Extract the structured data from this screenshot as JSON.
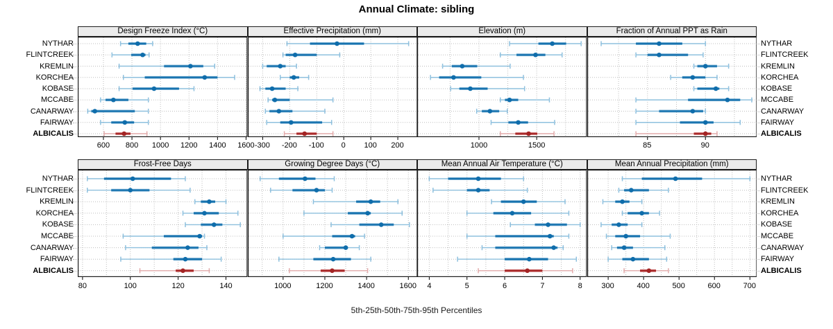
{
  "title": "Annual Climate: sibling",
  "caption": "5th-25th-50th-75th-95th Percentiles",
  "chart_data": {
    "type": "interval-dotplot",
    "title": "Annual Climate: sibling",
    "caption": "5th-25th-50th-75th-95th Percentiles",
    "percentiles": [
      5,
      25,
      50,
      75,
      95
    ],
    "stations": [
      "NYTHAR",
      "FLINTCREEK",
      "KREMLIN",
      "KORCHEA",
      "KOBASE",
      "MCCABE",
      "CANARWAY",
      "FAIRWAY",
      "ALBICALIS"
    ],
    "highlight_station": "ALBICALIS",
    "colors": {
      "blue_dark": "#0f6dab",
      "blue_bar": "#5b9ec9",
      "blue_light": "#8ec0de",
      "red_dark": "#a32424",
      "red_bar": "#cc6666",
      "red_light": "#e2aaaa",
      "gridline": "#bdbdbd",
      "strip_bg": "#ebebeb",
      "border": "#1c1c1c"
    },
    "panels": [
      {
        "title": "Design Freeze Index (°C)",
        "xlim": [
          420,
          1610
        ],
        "gridlines": [
          600,
          800,
          1000,
          1200,
          1400,
          1600
        ],
        "tick_values": [
          600,
          800,
          1000,
          1200,
          1400,
          1600
        ],
        "tick_labels": [
          "600",
          "800",
          "1000",
          "1200",
          "1400",
          "1600"
        ],
        "values": [
          [
            720,
            775,
            840,
            900,
            945
          ],
          [
            660,
            795,
            875,
            895,
            920
          ],
          [
            710,
            1025,
            1210,
            1300,
            1380
          ],
          [
            740,
            890,
            1310,
            1400,
            1520
          ],
          [
            710,
            805,
            955,
            1130,
            1235
          ],
          [
            580,
            615,
            670,
            775,
            915
          ],
          [
            490,
            515,
            540,
            820,
            915
          ],
          [
            580,
            655,
            750,
            815,
            915
          ],
          [
            605,
            685,
            745,
            790,
            905
          ]
        ]
      },
      {
        "title": "Effective Precipitation (mm)",
        "xlim": [
          -355,
          273
        ],
        "gridlines": [
          -300,
          -200,
          -100,
          0,
          100,
          200
        ],
        "tick_values": [
          -300,
          -200,
          -100,
          0,
          100,
          200
        ],
        "tick_labels": [
          "-300",
          "-200",
          "-100",
          "0",
          "100",
          "200"
        ],
        "values": [
          [
            -210,
            -125,
            -25,
            75,
            240
          ],
          [
            -225,
            -215,
            -180,
            -100,
            -15
          ],
          [
            -300,
            -285,
            -235,
            -215,
            -175
          ],
          [
            -235,
            -200,
            -185,
            -165,
            -130
          ],
          [
            -310,
            -290,
            -265,
            -215,
            -170
          ],
          [
            -280,
            -265,
            -255,
            -200,
            -40
          ],
          [
            -290,
            -275,
            -240,
            -190,
            -70
          ],
          [
            -285,
            -235,
            -195,
            -80,
            -45
          ],
          [
            -220,
            -175,
            -145,
            -100,
            -40
          ]
        ]
      },
      {
        "title": "Elevation (m)",
        "xlim": [
          465,
          1935
        ],
        "gridlines": [
          750,
          1000,
          1250,
          1500,
          1750
        ],
        "tick_values": [
          1000,
          1500
        ],
        "tick_labels": [
          "1000",
          "1500"
        ],
        "values": [
          [
            1265,
            1515,
            1635,
            1755,
            1885
          ],
          [
            1185,
            1325,
            1490,
            1575,
            1720
          ],
          [
            685,
            765,
            855,
            985,
            1270
          ],
          [
            580,
            655,
            780,
            1020,
            1385
          ],
          [
            755,
            830,
            925,
            1075,
            1395
          ],
          [
            1185,
            1225,
            1265,
            1340,
            1610
          ],
          [
            980,
            1025,
            1095,
            1175,
            1245
          ],
          [
            1105,
            1255,
            1340,
            1425,
            1655
          ],
          [
            1185,
            1315,
            1430,
            1505,
            1650
          ]
        ]
      },
      {
        "title": "Fraction of Annual PPT as Rain",
        "xlim": [
          79.8,
          94.45
        ],
        "gridlines": [
          82.5,
          85,
          87.5,
          90,
          92.5
        ],
        "tick_values": [
          85,
          90
        ],
        "tick_labels": [
          "85",
          "90"
        ],
        "values": [
          [
            81,
            84,
            86,
            88,
            90
          ],
          [
            84,
            85,
            86,
            88.5,
            89.8
          ],
          [
            89,
            89.3,
            90,
            91,
            92
          ],
          [
            87,
            88,
            88.9,
            90,
            91
          ],
          [
            89,
            89.3,
            90.9,
            91.2,
            92
          ],
          [
            84,
            88.5,
            91.9,
            93,
            94
          ],
          [
            84,
            86,
            88.9,
            89.8,
            90
          ],
          [
            84,
            87.8,
            90,
            90.7,
            93
          ],
          [
            84,
            89,
            90,
            90.5,
            91
          ]
        ]
      },
      {
        "title": "Frost-Free Days",
        "xlim": [
          78,
          149
        ],
        "gridlines": [
          80,
          90,
          100,
          110,
          120,
          130,
          140
        ],
        "tick_values": [
          80,
          100,
          120,
          140
        ],
        "tick_labels": [
          "80",
          "100",
          "120",
          "140"
        ],
        "values": [
          [
            82,
            89,
            101,
            117,
            123
          ],
          [
            82,
            92,
            100,
            108,
            125
          ],
          [
            127,
            129.5,
            133,
            135.5,
            140
          ],
          [
            122,
            126.5,
            131,
            137,
            145
          ],
          [
            123,
            129.5,
            135,
            138.5,
            146
          ],
          [
            97,
            114,
            129,
            130,
            131
          ],
          [
            98,
            109,
            124,
            128.5,
            132
          ],
          [
            96,
            118,
            123,
            130,
            138
          ],
          [
            104,
            119,
            122,
            126.5,
            133
          ]
        ]
      },
      {
        "title": "Growing Degree Days (°C)",
        "xlim": [
          831,
          1644
        ],
        "gridlines": [
          900,
          1000,
          1100,
          1200,
          1300,
          1400,
          1500,
          1600
        ],
        "tick_values": [
          1000,
          1200,
          1400,
          1600
        ],
        "tick_labels": [
          "1000",
          "1200",
          "1400",
          "1600"
        ],
        "values": [
          [
            890,
            980,
            1105,
            1155,
            1245
          ],
          [
            940,
            1045,
            1160,
            1200,
            1235
          ],
          [
            1145,
            1350,
            1420,
            1465,
            1550
          ],
          [
            1100,
            1310,
            1405,
            1420,
            1570
          ],
          [
            1230,
            1365,
            1470,
            1530,
            1605
          ],
          [
            1000,
            1235,
            1330,
            1345,
            1390
          ],
          [
            1175,
            1200,
            1300,
            1310,
            1365
          ],
          [
            980,
            1145,
            1240,
            1325,
            1420
          ],
          [
            1030,
            1180,
            1235,
            1295,
            1405
          ]
        ]
      },
      {
        "title": "Mean Annual Air Temperature (°C)",
        "xlim": [
          3.68,
          8.18
        ],
        "gridlines": [
          4,
          4.5,
          5,
          5.5,
          6,
          6.5,
          7,
          7.5,
          8
        ],
        "tick_values": [
          4,
          5,
          6,
          7,
          8
        ],
        "tick_labels": [
          "4",
          "5",
          "6",
          "7",
          "8"
        ],
        "values": [
          [
            4.0,
            4.5,
            5.3,
            5.9,
            6.5
          ],
          [
            4.1,
            5.0,
            5.3,
            5.6,
            6.6
          ],
          [
            5.65,
            5.9,
            6.5,
            6.85,
            7.6
          ],
          [
            5.0,
            5.7,
            6.2,
            6.7,
            7.7
          ],
          [
            6.15,
            6.8,
            7.15,
            7.65,
            8.0
          ],
          [
            5.0,
            5.75,
            7.2,
            7.3,
            7.7
          ],
          [
            5.4,
            5.75,
            7.3,
            7.4,
            7.55
          ],
          [
            4.75,
            6.0,
            6.65,
            7.15,
            7.9
          ],
          [
            5.3,
            6.0,
            6.6,
            7.0,
            7.8
          ]
        ]
      },
      {
        "title": "Mean Annual Precipitation (mm)",
        "xlim": [
          241,
          720
        ],
        "gridlines": [
          300,
          350,
          400,
          450,
          500,
          550,
          600,
          650,
          700
        ],
        "tick_values": [
          300,
          400,
          500,
          600,
          700
        ],
        "tick_labels": [
          "300",
          "400",
          "500",
          "600",
          "700"
        ],
        "values": [
          [
            340,
            395,
            490,
            565,
            700
          ],
          [
            330,
            345,
            365,
            415,
            470
          ],
          [
            285,
            320,
            340,
            360,
            395
          ],
          [
            340,
            355,
            395,
            415,
            445
          ],
          [
            280,
            310,
            330,
            355,
            395
          ],
          [
            295,
            320,
            350,
            390,
            475
          ],
          [
            310,
            325,
            345,
            370,
            460
          ],
          [
            300,
            340,
            370,
            415,
            465
          ],
          [
            345,
            390,
            415,
            435,
            470
          ]
        ]
      }
    ]
  }
}
